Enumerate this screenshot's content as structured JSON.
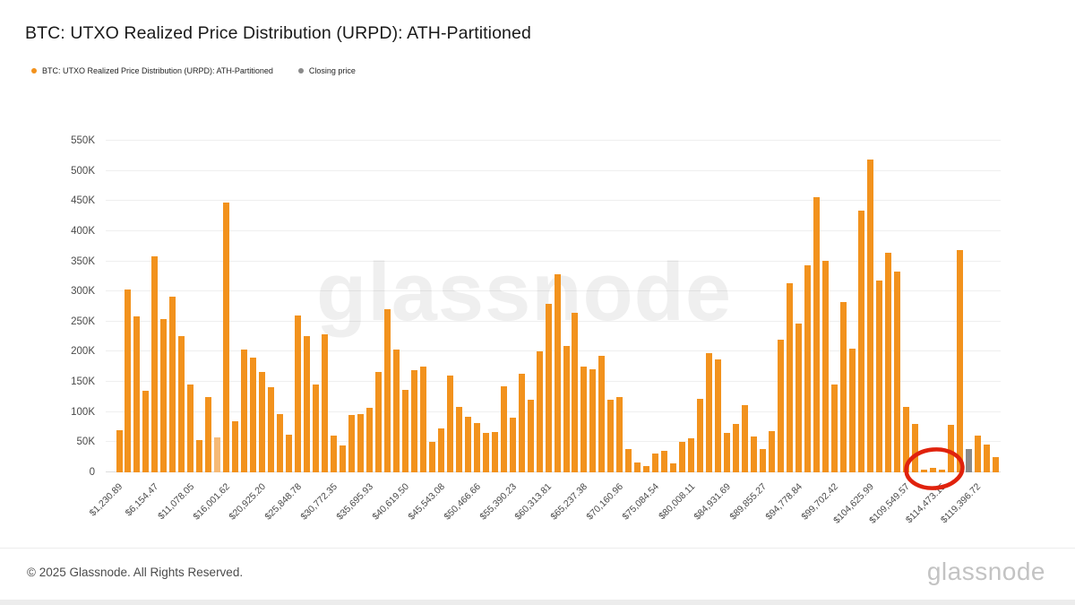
{
  "title": "BTC: UTXO Realized Price Distribution (URPD): ATH-Partitioned",
  "legend": {
    "series1": "BTC: UTXO Realized Price Distribution (URPD): ATH-Partitioned",
    "series2": "Closing price"
  },
  "watermark": "glassnode",
  "footer": {
    "copyright": "© 2025 Glassnode. All Rights Reserved.",
    "logo": "glassnode"
  },
  "colors": {
    "bar_orange": "#F2921D",
    "bar_light_orange": "#F6BA76",
    "closing_price_gray": "#8A8A8A",
    "annotation_red": "#E0220D",
    "gridline": "#EFEFEF",
    "axis_text": "#4A4A4A",
    "title_text": "#1A1A1A"
  },
  "chart_data": {
    "type": "bar",
    "title": "BTC: UTXO Realized Price Distribution (URPD): ATH-Partitioned",
    "xlabel": "",
    "ylabel": "",
    "y_unit": "K",
    "ylim": [
      0,
      550000
    ],
    "grid": true,
    "legend_position": "top-left",
    "yticks": [
      {
        "v": 0,
        "label": "0"
      },
      {
        "v": 50,
        "label": "50K"
      },
      {
        "v": 100,
        "label": "100K"
      },
      {
        "v": 150,
        "label": "150K"
      },
      {
        "v": 200,
        "label": "200K"
      },
      {
        "v": 250,
        "label": "250K"
      },
      {
        "v": 300,
        "label": "300K"
      },
      {
        "v": 350,
        "label": "350K"
      },
      {
        "v": 400,
        "label": "400K"
      },
      {
        "v": 450,
        "label": "450K"
      },
      {
        "v": 500,
        "label": "500K"
      },
      {
        "v": 550,
        "label": "550K"
      }
    ],
    "x_tick_every": 4,
    "x_tick_labels": [
      "$1,230.89",
      "$6,154.47",
      "$11,078.05",
      "$16,001.62",
      "$20,925.20",
      "$25,848.78",
      "$30,772.35",
      "$35,695.93",
      "$40,619.50",
      "$45,543.08",
      "$50,466.66",
      "$55,390.23",
      "$60,313.81",
      "$65,237.38",
      "$70,160.96",
      "$75,084.54",
      "$80,008.11",
      "$84,931.69",
      "$89,855.27",
      "$94,778.84",
      "$99,702.42",
      "$104,625.99",
      "$109,549.57",
      "$114,473.15",
      "$119,396.72"
    ],
    "series": [
      {
        "name": "BTC: UTXO Realized Price Distribution (URPD): ATH-Partitioned",
        "color": "#F2921D",
        "values_k": [
          70,
          303,
          258,
          135,
          358,
          254,
          292,
          226,
          145,
          54,
          125,
          58,
          447,
          85,
          204,
          190,
          167,
          141,
          97,
          62,
          260,
          226,
          145,
          229,
          61,
          45,
          95,
          97,
          107,
          167,
          270,
          204,
          137,
          169,
          176,
          51,
          73,
          160,
          108,
          92,
          82,
          66,
          67,
          142,
          91,
          164,
          121,
          201,
          279,
          328,
          209,
          264,
          175,
          171,
          194,
          121,
          125,
          38,
          16,
          11,
          31,
          35,
          15,
          51,
          56,
          122,
          197,
          187,
          65,
          80,
          112,
          59,
          39,
          68,
          220,
          314,
          247,
          343,
          457,
          351,
          146,
          282,
          205,
          434,
          519,
          318,
          364,
          333,
          108,
          81,
          4,
          7,
          4,
          79,
          368,
          38,
          61,
          46,
          25
        ]
      }
    ],
    "special_bins": {
      "light_opacity_index": 11,
      "closing_price_index": 95,
      "closing_price_series": "Closing price",
      "closing_price_value_k": 38
    },
    "annotations": [
      {
        "type": "ellipse",
        "description": "hand-drawn red circle around the near-empty bins beside $114,473.15",
        "color": "#E0220D"
      }
    ]
  }
}
